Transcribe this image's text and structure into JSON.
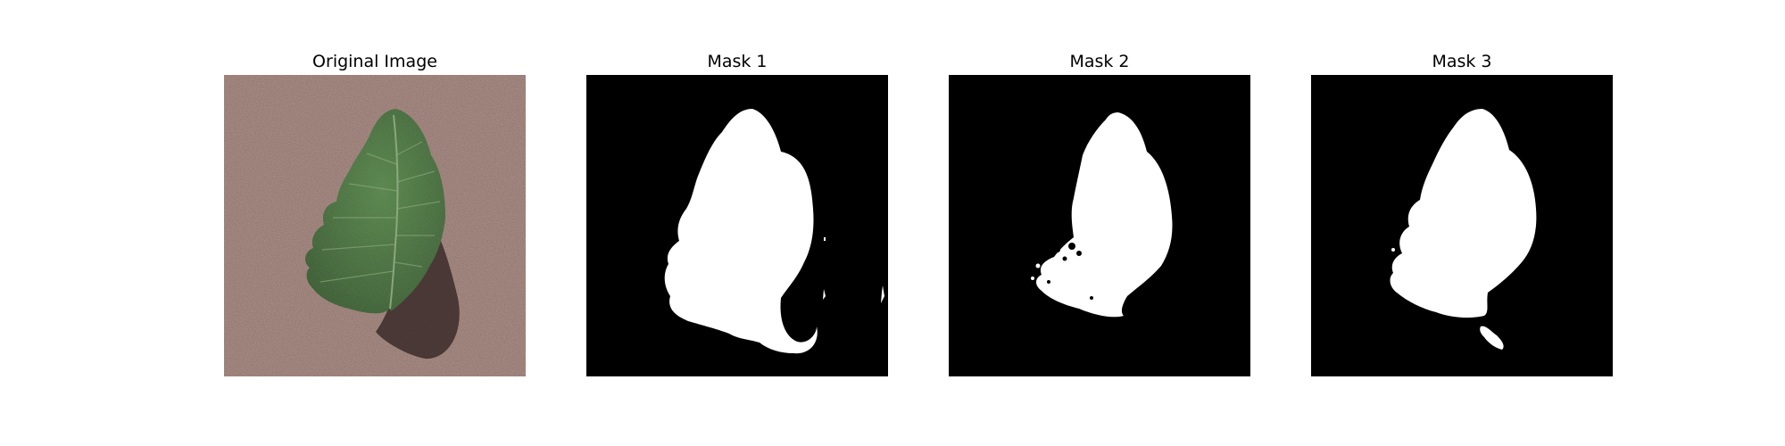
{
  "figure": {
    "panels": [
      {
        "title": "Original Image",
        "kind": "photo"
      },
      {
        "title": "Mask 1",
        "kind": "mask"
      },
      {
        "title": "Mask 2",
        "kind": "mask"
      },
      {
        "title": "Mask 3",
        "kind": "mask"
      }
    ]
  },
  "colors": {
    "background": "#ffffff",
    "mask_background": "#000000",
    "mask_foreground": "#ffffff",
    "soil": "#8a6b62",
    "leaf": "#3f6a34",
    "leaf_dark": "#2c4a25",
    "shadow": "#3b2c29"
  }
}
